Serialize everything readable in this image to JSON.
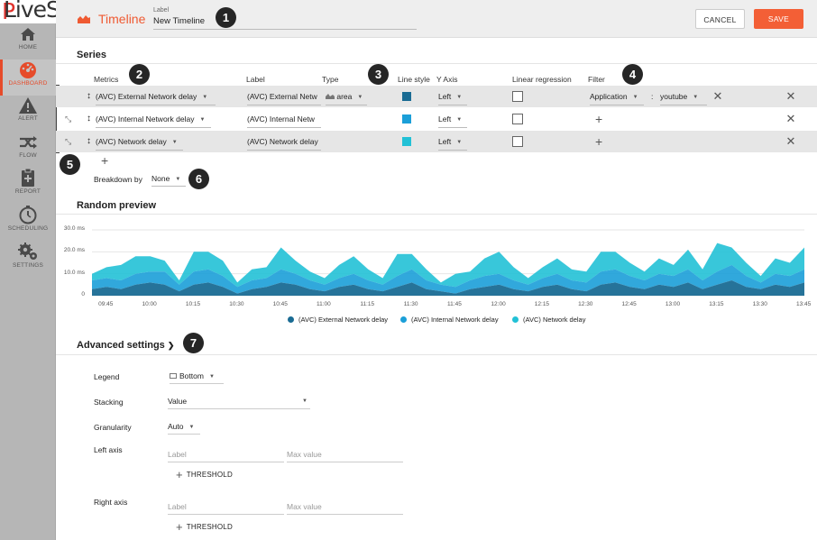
{
  "app": {
    "logo_text": "LiveS",
    "logo_accent": "P",
    "accent_color": "#f35f36"
  },
  "sidebar": {
    "items": [
      {
        "label": "HOME",
        "icon": "home-icon"
      },
      {
        "label": "DASHBOARD",
        "icon": "dashboard-icon",
        "active": true
      },
      {
        "label": "ALERT",
        "icon": "alert-icon"
      },
      {
        "label": "FLOW",
        "icon": "flow-icon"
      },
      {
        "label": "REPORT",
        "icon": "report-icon"
      },
      {
        "label": "SCHEDULING",
        "icon": "scheduling-icon"
      },
      {
        "label": "SETTINGS",
        "icon": "settings-icon"
      }
    ]
  },
  "topbar": {
    "title": "Timeline",
    "label_caption": "Label",
    "label_value": "New Timeline",
    "cancel": "CANCEL",
    "save": "SAVE"
  },
  "series": {
    "title": "Series",
    "columns": {
      "metrics": "Metrics",
      "label": "Label",
      "type": "Type",
      "line_style": "Line style",
      "y_axis": "Y Axis",
      "linear_regression": "Linear regression",
      "filter": "Filter"
    },
    "rows": [
      {
        "metric": "(AVC) External Network delay",
        "label": "(AVC) External Netw",
        "type": "area",
        "color": "#1a6b93",
        "y_axis": "Left",
        "filter_field": "Application",
        "filter_sep": ":",
        "filter_value": "youtube"
      },
      {
        "metric": "(AVC) Internal Network delay",
        "label": "(AVC) Internal Netw",
        "color": "#1b9fd8",
        "y_axis": "Left"
      },
      {
        "metric": "(AVC) Network delay",
        "label": "(AVC) Network delay",
        "color": "#22c1d6",
        "y_axis": "Left"
      }
    ],
    "breakdown_label": "Breakdown by",
    "breakdown_value": "None"
  },
  "preview": {
    "title": "Random preview"
  },
  "chart_data": {
    "type": "area",
    "stacked": true,
    "x": [
      "09:40",
      "09:45",
      "09:50",
      "09:55",
      "10:00",
      "10:05",
      "10:10",
      "10:15",
      "10:20",
      "10:25",
      "10:30",
      "10:35",
      "10:40",
      "10:45",
      "10:50",
      "10:55",
      "11:00",
      "11:05",
      "11:10",
      "11:15",
      "11:20",
      "11:25",
      "11:30",
      "11:35",
      "11:40",
      "11:45",
      "11:50",
      "11:55",
      "12:00",
      "12:05",
      "12:10",
      "12:15",
      "12:20",
      "12:25",
      "12:30",
      "12:35",
      "12:40",
      "12:45",
      "12:50",
      "12:55",
      "13:00",
      "13:05",
      "13:10",
      "13:15",
      "13:20",
      "13:25",
      "13:30",
      "13:35",
      "13:40",
      "13:45"
    ],
    "x_ticks": [
      "09:45",
      "10:00",
      "10:15",
      "10:30",
      "10:45",
      "11:00",
      "11:15",
      "11:30",
      "11:45",
      "12:00",
      "12:15",
      "12:30",
      "12:45",
      "13:00",
      "13:15",
      "13:30",
      "13:45"
    ],
    "y_ticks": [
      "0",
      "10.0 ms",
      "20.0 ms",
      "30.0 ms"
    ],
    "ylim": [
      0,
      30
    ],
    "series": [
      {
        "name": "(AVC) External Network delay",
        "color": "#1a6b93",
        "values": [
          3,
          4,
          3,
          5,
          6,
          5,
          2,
          5,
          6,
          4,
          1,
          3,
          4,
          6,
          5,
          3,
          2,
          4,
          5,
          3,
          2,
          4,
          6,
          3,
          2,
          1,
          3,
          4,
          5,
          3,
          2,
          4,
          5,
          3,
          2,
          5,
          6,
          4,
          3,
          5,
          4,
          6,
          3,
          5,
          7,
          4,
          3,
          5,
          4,
          6
        ]
      },
      {
        "name": "(AVC) Internal Network delay",
        "color": "#1b9fd8",
        "values": [
          4,
          4,
          4,
          5,
          5,
          6,
          3,
          6,
          6,
          5,
          3,
          4,
          4,
          6,
          5,
          4,
          3,
          4,
          5,
          4,
          3,
          5,
          6,
          4,
          3,
          3,
          4,
          5,
          5,
          4,
          3,
          4,
          5,
          4,
          4,
          6,
          6,
          5,
          4,
          5,
          5,
          6,
          4,
          6,
          7,
          5,
          3,
          5,
          5,
          6
        ]
      },
      {
        "name": "(AVC) Network delay",
        "color": "#22c1d6",
        "values": [
          3,
          5,
          7,
          8,
          7,
          5,
          2,
          9,
          8,
          7,
          2,
          5,
          5,
          10,
          6,
          4,
          3,
          6,
          8,
          5,
          3,
          10,
          7,
          5,
          1,
          6,
          4,
          8,
          10,
          6,
          3,
          5,
          7,
          5,
          5,
          9,
          8,
          6,
          4,
          7,
          5,
          9,
          5,
          13,
          8,
          6,
          3,
          7,
          6,
          10
        ]
      }
    ],
    "legend_position": "bottom"
  },
  "advanced": {
    "title": "Advanced settings",
    "legend_label": "Legend",
    "legend_value": "Bottom",
    "stacking_label": "Stacking",
    "stacking_value": "Value",
    "granularity_label": "Granularity",
    "granularity_value": "Auto",
    "left_axis_label": "Left axis",
    "right_axis_label": "Right axis",
    "axis_label_placeholder": "Label",
    "axis_max_placeholder": "Max value",
    "threshold": "THRESHOLD"
  },
  "badges": [
    "1",
    "2",
    "3",
    "4",
    "5",
    "6",
    "7"
  ]
}
